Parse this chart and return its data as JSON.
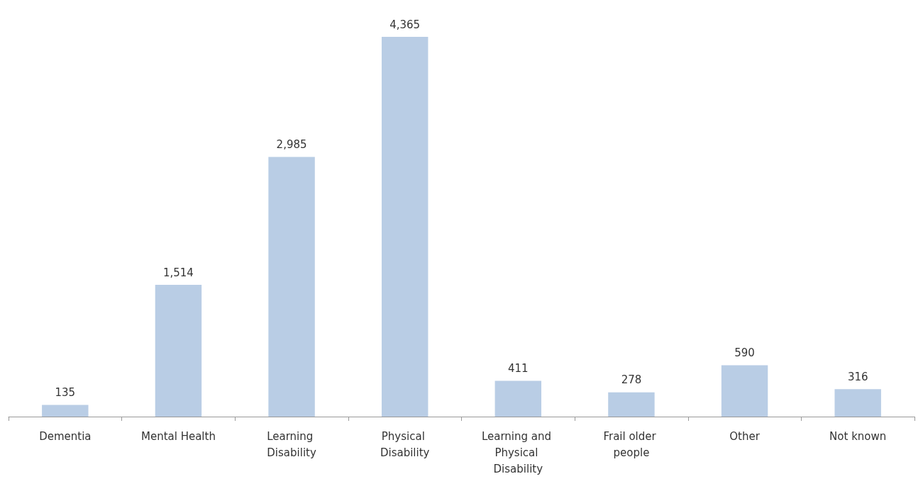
{
  "chart_data": {
    "type": "bar",
    "categories": [
      "Dementia",
      "Mental Health",
      "Learning Disability",
      "Physical Disability",
      "Learning and Physical Disability",
      "Frail older people",
      "Other",
      "Not known"
    ],
    "values": [
      135,
      1514,
      2985,
      4365,
      411,
      278,
      590,
      316
    ],
    "color": "#b9cde5",
    "value_labels": [
      "135",
      "1,514",
      "2,985",
      "4,365",
      "411",
      "278",
      "590",
      "316"
    ]
  }
}
